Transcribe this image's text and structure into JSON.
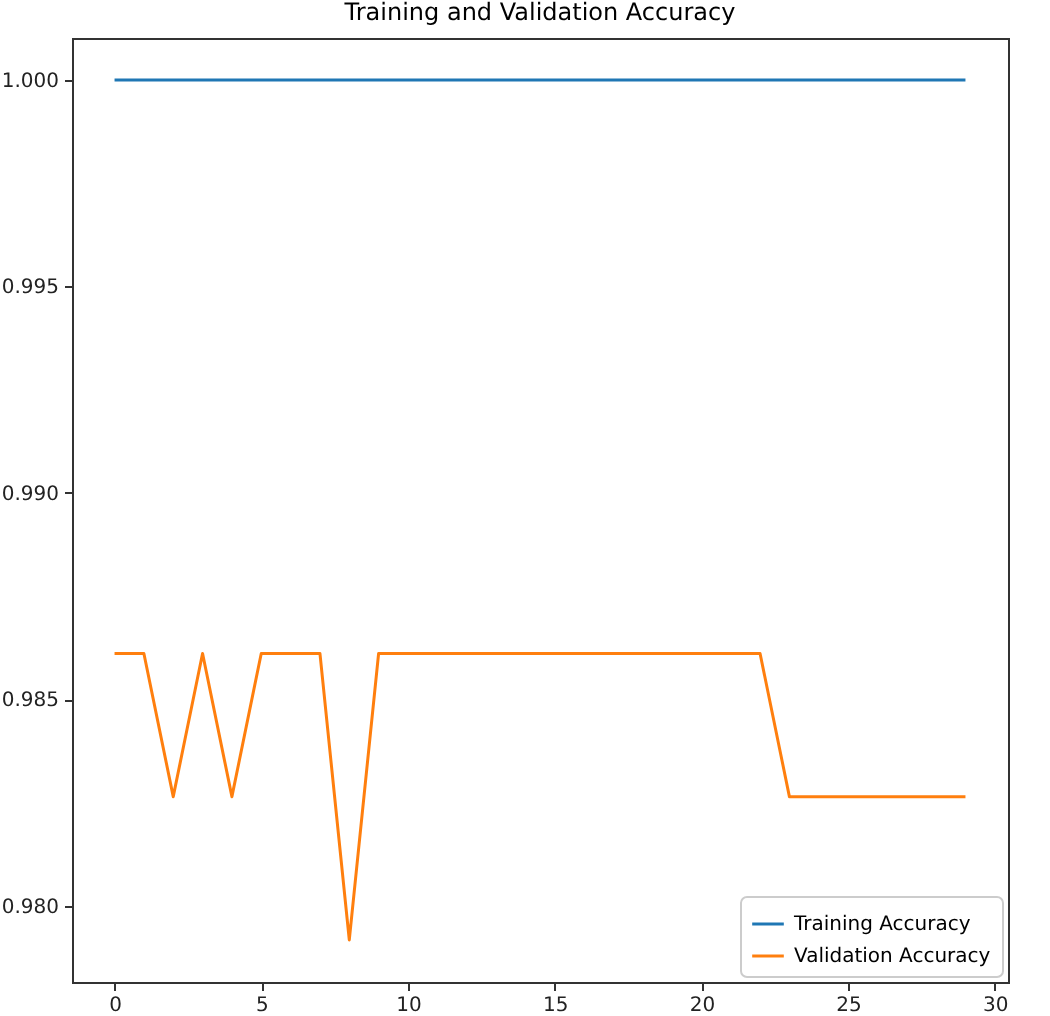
{
  "chart_data": {
    "type": "line",
    "title": "Training and Validation Accuracy",
    "x": [
      0,
      1,
      2,
      3,
      4,
      5,
      6,
      7,
      8,
      9,
      10,
      11,
      12,
      13,
      14,
      15,
      16,
      17,
      18,
      19,
      20,
      21,
      22,
      23,
      24,
      25,
      26,
      27,
      28,
      29
    ],
    "series": [
      {
        "name": "Training Accuracy",
        "color": "#1f77b4",
        "values": [
          1,
          1,
          1,
          1,
          1,
          1,
          1,
          1,
          1,
          1,
          1,
          1,
          1,
          1,
          1,
          1,
          1,
          1,
          1,
          1,
          1,
          1,
          1,
          1,
          1,
          1,
          1,
          1,
          1,
          1
        ]
      },
      {
        "name": "Validation Accuracy",
        "color": "#ff7f0e",
        "values": [
          0.98611,
          0.98611,
          0.98264,
          0.98611,
          0.98264,
          0.98611,
          0.98611,
          0.98611,
          0.97917,
          0.98611,
          0.98611,
          0.98611,
          0.98611,
          0.98611,
          0.98611,
          0.98611,
          0.98611,
          0.98611,
          0.98611,
          0.98611,
          0.98611,
          0.98611,
          0.98611,
          0.98264,
          0.98264,
          0.98264,
          0.98264,
          0.98264,
          0.98264,
          0.98264
        ]
      }
    ],
    "xlim": [
      -1.45,
      30.45
    ],
    "xticks": [
      0,
      5,
      10,
      15,
      20,
      25,
      30
    ],
    "ylim": [
      0.97815,
      1.00102
    ],
    "yticks": [
      {
        "value": 0.98,
        "label": "0.980"
      },
      0.985,
      {
        "value": 0.99,
        "label": "0.990"
      },
      0.995,
      {
        "value": 1,
        "label": "1.000"
      }
    ],
    "grid": false,
    "legend": "bottom right",
    "marker": "none",
    "line_style": "solid"
  }
}
